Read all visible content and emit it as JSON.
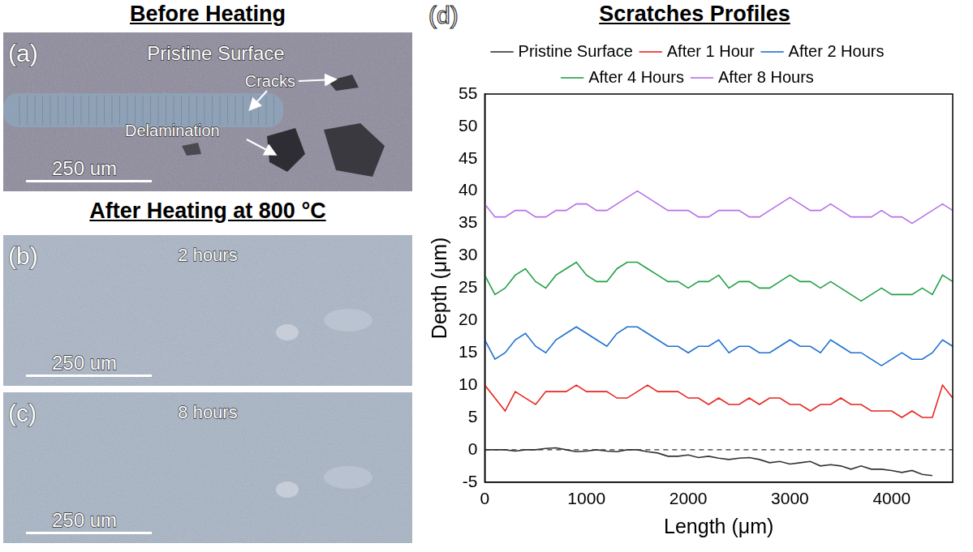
{
  "panels": [
    {
      "letter": "(a)",
      "heading": "Before Heating",
      "title": "Pristine Surface",
      "annotations": [
        "Cracks",
        "Delamination"
      ],
      "scale_bar": "250 um"
    },
    {
      "letter": "(b)",
      "heading": "After Heating at 800 °C",
      "caption": "2 hours",
      "scale_bar": "250 um"
    },
    {
      "letter": "(c)",
      "caption": "8 hours",
      "scale_bar": "250 um"
    }
  ],
  "chart_data": {
    "type": "line",
    "letter": "(d)",
    "title": "Scratches Profiles",
    "x_label": "Length (μm)",
    "y_label": "Depth (μm)",
    "x": [
      0,
      100,
      200,
      300,
      400,
      500,
      600,
      700,
      800,
      900,
      1000,
      1100,
      1200,
      1300,
      1400,
      1500,
      1600,
      1700,
      1800,
      1900,
      2000,
      2100,
      2200,
      2300,
      2400,
      2500,
      2600,
      2700,
      2800,
      2900,
      3000,
      3100,
      3200,
      3300,
      3400,
      3500,
      3600,
      3700,
      3800,
      3900,
      4000,
      4100,
      4200,
      4300,
      4400,
      4500,
      4600
    ],
    "series": [
      {
        "name": "Pristine Surface",
        "color": "#333333",
        "values": [
          0,
          0,
          0,
          -0.2,
          0,
          0,
          0.2,
          0.3,
          0,
          -0.3,
          -0.2,
          0,
          -0.2,
          -0.3,
          0,
          0,
          -0.3,
          -0.5,
          -1,
          -1,
          -0.8,
          -1.2,
          -1,
          -1.3,
          -1.5,
          -1.3,
          -1.2,
          -1.5,
          -2,
          -1.8,
          -2.2,
          -2,
          -1.8,
          -2.5,
          -2.3,
          -2.5,
          -3,
          -2.5,
          -3,
          -3,
          -3.2,
          -3.5,
          -3.2,
          -3.8,
          -4,
          null,
          null
        ]
      },
      {
        "name": "After 1 Hour",
        "color": "#e8251f",
        "values": [
          10,
          8,
          6,
          9,
          8,
          7,
          9,
          9,
          9,
          10,
          9,
          9,
          9,
          8,
          8,
          9,
          10,
          9,
          9,
          9,
          8,
          8,
          7,
          8,
          7,
          7,
          8,
          7,
          8,
          8,
          7,
          7,
          6,
          7,
          7,
          8,
          7,
          7,
          6,
          6,
          6,
          5,
          6,
          5,
          5,
          10,
          8
        ]
      },
      {
        "name": "After 2 Hours",
        "color": "#1f6fd0",
        "values": [
          17,
          14,
          15,
          17,
          18,
          16,
          15,
          17,
          18,
          19,
          18,
          17,
          16,
          18,
          19,
          19,
          18,
          17,
          16,
          16,
          15,
          16,
          16,
          17,
          15,
          16,
          16,
          15,
          15,
          16,
          17,
          16,
          16,
          15,
          17,
          16,
          15,
          15,
          14,
          13,
          14,
          15,
          14,
          14,
          15,
          17,
          16
        ]
      },
      {
        "name": "After 4 Hours",
        "color": "#23a045",
        "values": [
          27,
          24,
          25,
          27,
          28,
          26,
          25,
          27,
          28,
          29,
          27,
          26,
          26,
          28,
          29,
          29,
          28,
          27,
          26,
          26,
          25,
          26,
          26,
          27,
          25,
          26,
          26,
          25,
          25,
          26,
          27,
          26,
          26,
          25,
          26,
          25,
          24,
          23,
          24,
          25,
          24,
          24,
          24,
          25,
          24,
          27,
          26
        ]
      },
      {
        "name": "After 8 Hours",
        "color": "#b86fe8",
        "values": [
          38,
          36,
          36,
          37,
          37,
          36,
          36,
          37,
          37,
          38,
          38,
          37,
          37,
          38,
          39,
          40,
          39,
          38,
          37,
          37,
          37,
          36,
          36,
          37,
          37,
          37,
          36,
          36,
          37,
          38,
          39,
          38,
          37,
          37,
          38,
          37,
          36,
          36,
          36,
          37,
          36,
          36,
          35,
          36,
          37,
          38,
          37
        ]
      }
    ],
    "xlim": [
      0,
      4600
    ],
    "xticks": [
      0,
      1000,
      2000,
      3000,
      4000
    ],
    "ylim": [
      -5,
      55
    ],
    "yticks": [
      -5,
      0,
      5,
      10,
      15,
      20,
      25,
      30,
      35,
      40,
      45,
      50,
      55
    ],
    "grid": false,
    "legend": "top",
    "baseline": 0
  }
}
